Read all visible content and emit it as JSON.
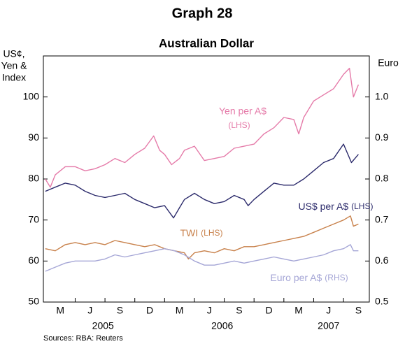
{
  "chart_data": {
    "type": "line",
    "title": "Graph 28",
    "subtitle": "Australian Dollar",
    "y_axis_label": [
      "US¢,",
      "Yen &",
      "Index"
    ],
    "y2_axis_label": "Euro",
    "source": "Sources: RBA: Reuters",
    "xlim": [
      0.8,
      33.6
    ],
    "xticks": [
      {
        "value": 2.5,
        "label": "M"
      },
      {
        "value": 5.5,
        "label": "J"
      },
      {
        "value": 8.5,
        "label": "S"
      },
      {
        "value": 11.5,
        "label": "D"
      },
      {
        "value": 14.5,
        "label": "M"
      },
      {
        "value": 17.5,
        "label": "J"
      },
      {
        "value": 20.5,
        "label": "S"
      },
      {
        "value": 23.5,
        "label": "D"
      },
      {
        "value": 26.5,
        "label": "M"
      },
      {
        "value": 29.5,
        "label": "J"
      },
      {
        "value": 32.5,
        "label": "S"
      }
    ],
    "year_labels": [
      {
        "value": 6.8,
        "label": "2005"
      },
      {
        "value": 18.8,
        "label": "2006"
      },
      {
        "value": 29.5,
        "label": "2007"
      }
    ],
    "ylim": [
      50,
      110
    ],
    "yticks": [
      50,
      60,
      70,
      80,
      90,
      100
    ],
    "y2lim": [
      0.5,
      1.1
    ],
    "y2ticks": [
      0.5,
      0.6,
      0.7,
      0.8,
      0.9,
      {
        "value": 1.0,
        "label": "1.0"
      }
    ],
    "grid": false,
    "series": [
      {
        "name": "Yen per A$",
        "note": "(LHS)",
        "color": "#e57ba9",
        "x": [
          1,
          1.5,
          2,
          3,
          4,
          5,
          6,
          7,
          8,
          9,
          10,
          11,
          11.9,
          12.5,
          13,
          13.7,
          14.5,
          15,
          16,
          17,
          18,
          19,
          20,
          21,
          22,
          23,
          24,
          25,
          26,
          26.5,
          27,
          28,
          29,
          30,
          31,
          31.6,
          32,
          32.5
        ],
        "values": [
          80,
          78,
          81,
          83,
          83,
          82,
          82.5,
          83.5,
          85,
          84,
          86,
          87.5,
          90.5,
          87,
          86,
          83.5,
          85,
          87,
          88,
          84.5,
          85,
          85.5,
          87.5,
          88,
          88.5,
          91,
          92.5,
          95,
          94.5,
          91,
          95,
          99,
          100.5,
          102,
          105.5,
          107,
          100,
          103
        ]
      },
      {
        "name": "US$ per A$",
        "note": "(LHS)",
        "color": "#2b2a6b",
        "x": [
          1,
          2,
          3,
          4,
          5,
          6,
          7,
          8,
          9,
          10,
          11,
          12,
          13,
          13.9,
          14.5,
          15,
          16,
          17,
          18,
          19,
          20,
          21,
          21.4,
          22,
          23,
          24,
          25,
          26,
          27,
          28,
          29,
          30,
          31,
          31.8,
          32.5
        ],
        "values": [
          77,
          78,
          79,
          78.5,
          77,
          76,
          75.5,
          76,
          76.5,
          75,
          74,
          73,
          73.5,
          70.5,
          73,
          75,
          76.5,
          75,
          74,
          74.5,
          76,
          75,
          73.5,
          75,
          77,
          79,
          78.5,
          78.5,
          80,
          82,
          84,
          85,
          88.5,
          84,
          86
        ]
      },
      {
        "name": "TWI",
        "note": "(LHS)",
        "color": "#c8814b",
        "x": [
          1,
          2,
          3,
          4,
          5,
          6,
          7,
          8,
          9,
          10,
          11,
          12,
          13,
          14,
          15,
          15.4,
          16,
          17,
          18,
          19,
          20,
          21,
          22,
          23,
          24,
          25,
          26,
          27,
          28,
          29,
          30,
          31,
          31.7,
          32,
          32.5
        ],
        "values": [
          63,
          62.5,
          64,
          64.5,
          64,
          64.5,
          64,
          65,
          64.5,
          64,
          63.5,
          64,
          63,
          62.5,
          62,
          60.5,
          62,
          62.5,
          62,
          63,
          62.5,
          63.5,
          63.5,
          64,
          64.5,
          65,
          65.5,
          66,
          67,
          68,
          69,
          70,
          71,
          68.5,
          69
        ]
      },
      {
        "name": "Euro per A$",
        "note": "(RHS)",
        "color": "#a5a6d6",
        "axis": "y2",
        "x": [
          1,
          2,
          3,
          4,
          5,
          6,
          7,
          8,
          9,
          10,
          11,
          12,
          13,
          14,
          15,
          16,
          17,
          18,
          19,
          20,
          21,
          22,
          23,
          24,
          25,
          26,
          27,
          28,
          29,
          30,
          31,
          31.7,
          32,
          32.5
        ],
        "values": [
          0.575,
          0.585,
          0.595,
          0.6,
          0.6,
          0.6,
          0.605,
          0.615,
          0.61,
          0.615,
          0.62,
          0.625,
          0.63,
          0.625,
          0.615,
          0.6,
          0.59,
          0.59,
          0.595,
          0.6,
          0.595,
          0.6,
          0.605,
          0.61,
          0.605,
          0.6,
          0.605,
          0.61,
          0.615,
          0.625,
          0.63,
          0.64,
          0.625,
          0.625
        ]
      }
    ]
  }
}
